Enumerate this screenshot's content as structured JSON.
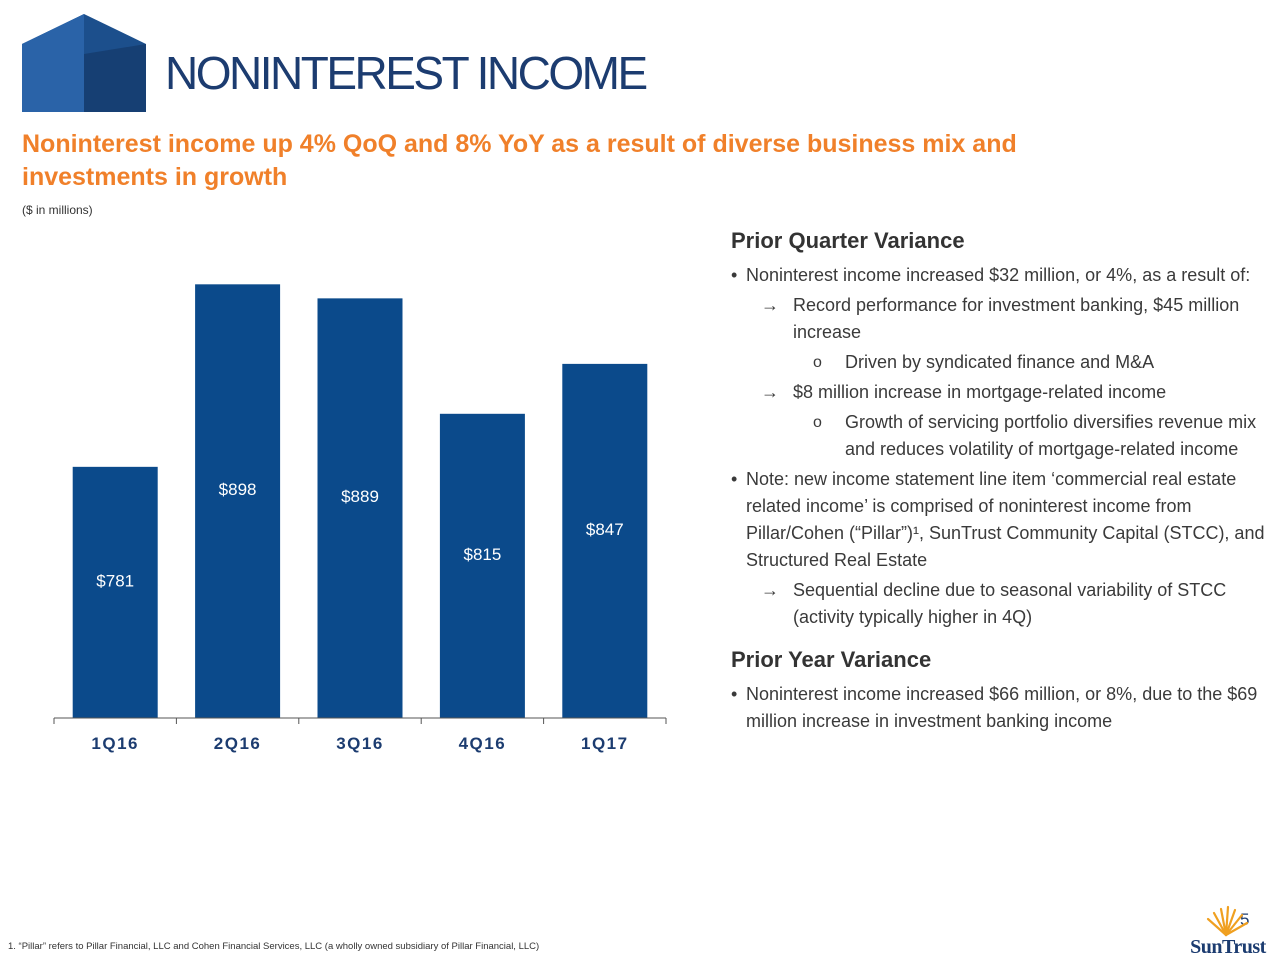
{
  "header": {
    "title": "NONINTEREST INCOME",
    "subtitle": "Noninterest income up 4% QoQ and 8% YoY as a result of diverse business mix and investments in growth",
    "units_note": "($ in millions)"
  },
  "colors": {
    "brand_navy": "#0b4a8b",
    "accent_orange": "#f0802a",
    "logo_navy": "#1c3c70"
  },
  "chart_data": {
    "type": "bar",
    "categories": [
      "1Q16",
      "2Q16",
      "3Q16",
      "4Q16",
      "1Q17"
    ],
    "values": [
      781,
      898,
      889,
      815,
      847
    ],
    "value_labels": [
      "$781",
      "$898",
      "$889",
      "$815",
      "$847"
    ],
    "ylim": [
      620,
      920
    ],
    "title": "",
    "xlabel": "",
    "ylabel": "",
    "grid": false
  },
  "commentary": {
    "prior_quarter": {
      "heading": "Prior Quarter Variance",
      "items": [
        {
          "level": 1,
          "marker": "•",
          "text": "Noninterest income increased $32 million, or 4%, as a result of:"
        },
        {
          "level": 2,
          "marker": "→",
          "text": "Record performance for investment banking, $45 million increase"
        },
        {
          "level": 3,
          "marker": "o",
          "text": "Driven by syndicated finance and M&A"
        },
        {
          "level": 2,
          "marker": "→",
          "text": "$8 million increase in mortgage-related income"
        },
        {
          "level": 3,
          "marker": "o",
          "text": "Growth of servicing portfolio diversifies revenue mix and reduces volatility of mortgage-related income"
        },
        {
          "level": 1,
          "marker": "•",
          "text": "Note: new income statement line item ‘commercial real estate related income’ is comprised of noninterest income from Pillar/Cohen (“Pillar”)¹, SunTrust Community Capital (STCC), and Structured Real Estate"
        },
        {
          "level": 2,
          "marker": "→",
          "text": "Sequential decline due to seasonal variability of STCC (activity typically higher in 4Q)"
        }
      ]
    },
    "prior_year": {
      "heading": "Prior Year Variance",
      "items": [
        {
          "level": 1,
          "marker": "•",
          "text": "Noninterest income increased $66 million, or 8%, due to the $69 million increase in investment banking income"
        }
      ]
    }
  },
  "footer": {
    "footnote": "1. “Pillar” refers to Pillar Financial, LLC and Cohen Financial Services, LLC (a wholly owned subsidiary of Pillar Financial, LLC)",
    "page_number": "5",
    "brand": "SunTrust"
  }
}
